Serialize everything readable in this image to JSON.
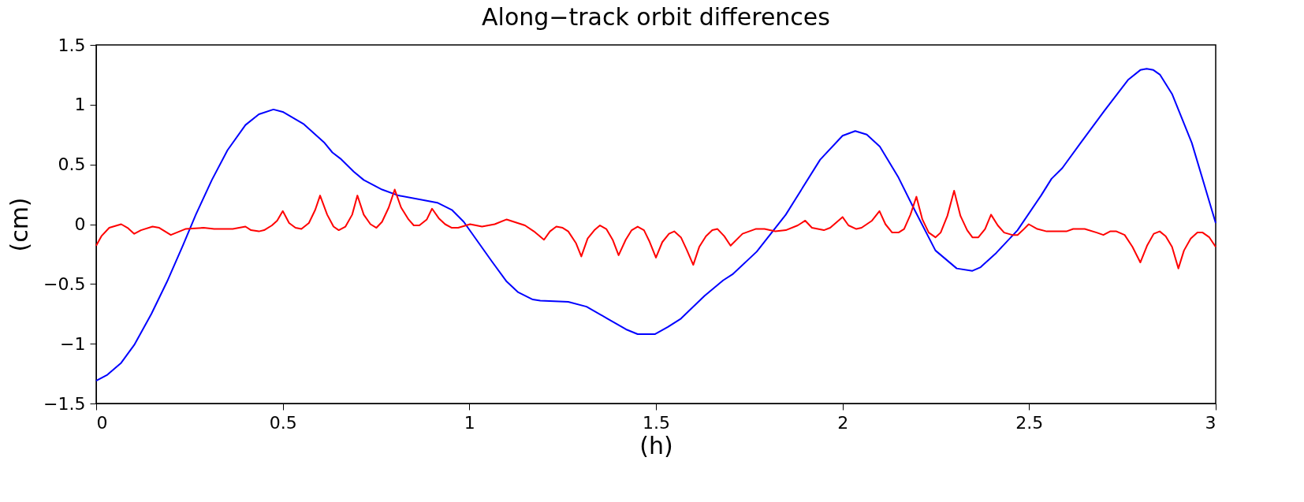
{
  "chart_data": {
    "type": "line",
    "title": "Along−track orbit differences",
    "xlabel": "(h)",
    "ylabel": "(cm)",
    "xlim": [
      0,
      3
    ],
    "xticks": [
      0,
      0.5,
      1,
      1.5,
      2,
      2.5,
      3
    ],
    "ylim": [
      -1.5,
      1.5
    ],
    "yticks": [
      -1.5,
      -1,
      -0.5,
      0,
      0.5,
      1,
      1.5
    ],
    "grid": false,
    "marker": "none",
    "line_style": "solid",
    "series": [
      {
        "color": "#0000ff",
        "x": [
          0,
          0.03,
          0.067,
          0.102,
          0.148,
          0.19,
          0.232,
          0.267,
          0.31,
          0.352,
          0.4,
          0.436,
          0.475,
          0.5,
          0.555,
          0.612,
          0.633,
          0.654,
          0.69,
          0.717,
          0.766,
          0.81,
          0.914,
          0.953,
          0.985,
          1.06,
          1.1,
          1.131,
          1.17,
          1.19,
          1.265,
          1.314,
          1.37,
          1.42,
          1.451,
          1.497,
          1.532,
          1.567,
          1.63,
          1.68,
          1.705,
          1.77,
          1.848,
          1.94,
          2.0,
          2.034,
          2.065,
          2.1,
          2.15,
          2.193,
          2.249,
          2.306,
          2.348,
          2.37,
          2.412,
          2.469,
          2.532,
          2.56,
          2.589,
          2.638,
          2.702,
          2.766,
          2.798,
          2.815,
          2.833,
          2.851,
          2.883,
          2.936,
          3.0
        ],
        "values": [
          -1.31,
          -1.26,
          -1.16,
          -1.01,
          -0.75,
          -0.48,
          -0.18,
          0.08,
          0.37,
          0.62,
          0.83,
          0.92,
          0.96,
          0.94,
          0.84,
          0.68,
          0.6,
          0.55,
          0.44,
          0.37,
          0.29,
          0.24,
          0.18,
          0.12,
          0.02,
          -0.31,
          -0.48,
          -0.57,
          -0.63,
          -0.64,
          -0.65,
          -0.69,
          -0.79,
          -0.88,
          -0.92,
          -0.92,
          -0.86,
          -0.79,
          -0.6,
          -0.47,
          -0.42,
          -0.23,
          0.08,
          0.54,
          0.74,
          0.78,
          0.75,
          0.65,
          0.39,
          0.12,
          -0.22,
          -0.37,
          -0.39,
          -0.36,
          -0.24,
          -0.05,
          0.24,
          0.38,
          0.47,
          0.68,
          0.95,
          1.21,
          1.29,
          1.3,
          1.29,
          1.25,
          1.09,
          0.68,
          0.01
        ]
      },
      {
        "color": "#ff0000",
        "x": [
          0,
          0.014,
          0.035,
          0.067,
          0.084,
          0.102,
          0.12,
          0.151,
          0.169,
          0.2,
          0.239,
          0.288,
          0.316,
          0.366,
          0.4,
          0.415,
          0.436,
          0.45,
          0.471,
          0.485,
          0.5,
          0.517,
          0.534,
          0.55,
          0.57,
          0.587,
          0.6,
          0.619,
          0.636,
          0.65,
          0.668,
          0.686,
          0.7,
          0.717,
          0.735,
          0.751,
          0.766,
          0.784,
          0.8,
          0.817,
          0.837,
          0.851,
          0.866,
          0.886,
          0.9,
          0.918,
          0.935,
          0.953,
          0.97,
          1.002,
          1.034,
          1.068,
          1.1,
          1.149,
          1.173,
          1.2,
          1.216,
          1.233,
          1.25,
          1.265,
          1.286,
          1.3,
          1.317,
          1.335,
          1.35,
          1.367,
          1.384,
          1.4,
          1.419,
          1.435,
          1.451,
          1.468,
          1.482,
          1.5,
          1.517,
          1.535,
          1.549,
          1.567,
          1.582,
          1.6,
          1.616,
          1.634,
          1.651,
          1.665,
          1.683,
          1.7,
          1.732,
          1.767,
          1.791,
          1.82,
          1.848,
          1.88,
          1.9,
          1.918,
          1.95,
          1.967,
          2.0,
          2.016,
          2.037,
          2.051,
          2.079,
          2.099,
          2.115,
          2.133,
          2.15,
          2.165,
          2.182,
          2.198,
          2.214,
          2.231,
          2.249,
          2.263,
          2.281,
          2.299,
          2.316,
          2.334,
          2.348,
          2.364,
          2.382,
          2.398,
          2.416,
          2.433,
          2.455,
          2.469,
          2.483,
          2.499,
          2.522,
          2.547,
          2.6,
          2.618,
          2.649,
          2.681,
          2.699,
          2.717,
          2.734,
          2.756,
          2.777,
          2.798,
          2.816,
          2.834,
          2.85,
          2.866,
          2.883,
          2.9,
          2.915,
          2.933,
          2.951,
          2.965,
          2.983,
          3.0
        ],
        "values": [
          -0.18,
          -0.1,
          -0.03,
          0.0,
          -0.03,
          -0.08,
          -0.05,
          -0.02,
          -0.03,
          -0.09,
          -0.04,
          -0.03,
          -0.04,
          -0.04,
          -0.02,
          -0.05,
          -0.06,
          -0.05,
          -0.01,
          0.03,
          0.11,
          0.01,
          -0.03,
          -0.04,
          0.01,
          0.12,
          0.24,
          0.08,
          -0.02,
          -0.05,
          -0.02,
          0.08,
          0.24,
          0.08,
          0.0,
          -0.03,
          0.02,
          0.14,
          0.29,
          0.14,
          0.04,
          -0.01,
          -0.01,
          0.04,
          0.13,
          0.05,
          0.0,
          -0.03,
          -0.03,
          0.0,
          -0.02,
          0.0,
          0.04,
          -0.01,
          -0.06,
          -0.13,
          -0.06,
          -0.02,
          -0.03,
          -0.06,
          -0.16,
          -0.27,
          -0.12,
          -0.05,
          -0.01,
          -0.04,
          -0.13,
          -0.26,
          -0.13,
          -0.05,
          -0.02,
          -0.05,
          -0.14,
          -0.28,
          -0.15,
          -0.08,
          -0.06,
          -0.11,
          -0.21,
          -0.34,
          -0.19,
          -0.1,
          -0.05,
          -0.04,
          -0.1,
          -0.18,
          -0.08,
          -0.04,
          -0.04,
          -0.06,
          -0.05,
          -0.01,
          0.03,
          -0.03,
          -0.05,
          -0.03,
          0.06,
          -0.01,
          -0.04,
          -0.03,
          0.03,
          0.11,
          0.0,
          -0.07,
          -0.07,
          -0.04,
          0.08,
          0.23,
          0.04,
          -0.07,
          -0.11,
          -0.07,
          0.07,
          0.28,
          0.07,
          -0.05,
          -0.11,
          -0.11,
          -0.04,
          0.08,
          -0.01,
          -0.07,
          -0.09,
          -0.09,
          -0.05,
          0.0,
          -0.04,
          -0.06,
          -0.06,
          -0.04,
          -0.04,
          -0.07,
          -0.09,
          -0.06,
          -0.06,
          -0.09,
          -0.19,
          -0.32,
          -0.18,
          -0.08,
          -0.06,
          -0.1,
          -0.19,
          -0.37,
          -0.22,
          -0.12,
          -0.07,
          -0.07,
          -0.11,
          -0.19
        ]
      }
    ]
  }
}
